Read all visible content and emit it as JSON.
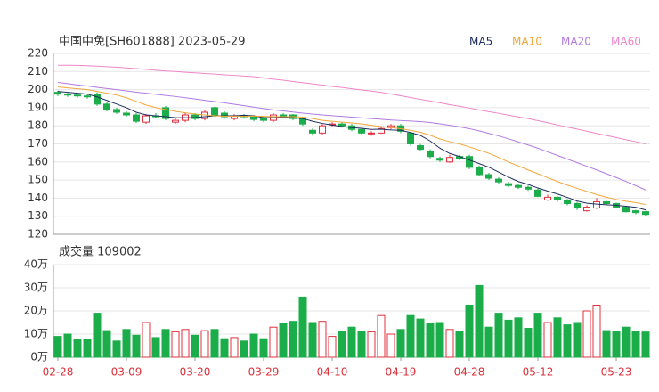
{
  "chart_data": [
    {
      "type": "candlestick",
      "title": "中国中免[SH601888] 2023-05-29",
      "categories": [
        "02-28",
        null,
        null,
        null,
        null,
        null,
        null,
        "03-09",
        null,
        null,
        null,
        null,
        null,
        null,
        "03-20",
        null,
        null,
        null,
        null,
        null,
        null,
        "03-29",
        null,
        null,
        null,
        null,
        null,
        null,
        "04-10",
        null,
        null,
        null,
        null,
        null,
        null,
        "04-19",
        null,
        null,
        null,
        null,
        null,
        null,
        "04-28",
        null,
        null,
        null,
        null,
        null,
        null,
        "05-12",
        null,
        null,
        null,
        null,
        null,
        null,
        null,
        "05-23",
        null,
        null,
        null
      ],
      "open": [
        198.5,
        197.5,
        197,
        196.5,
        197.5,
        192,
        189,
        187,
        186,
        182,
        185.5,
        190,
        182,
        183,
        186,
        184,
        190,
        187,
        184,
        185.5,
        185,
        184.5,
        183,
        186,
        186,
        184,
        177.5,
        176,
        180.5,
        181,
        180,
        178,
        176,
        176,
        179,
        180,
        176,
        169,
        166,
        162,
        160,
        163,
        163,
        157,
        153,
        150.5,
        148,
        147,
        146,
        144.5,
        139,
        140.5,
        139,
        137,
        133,
        134.5,
        138,
        137,
        135,
        133,
        132.5
      ],
      "high": [
        199.5,
        198.5,
        198,
        197.5,
        198.5,
        193,
        190,
        188,
        187,
        186.5,
        187,
        191,
        184.5,
        187.5,
        187,
        188.5,
        190.5,
        188,
        186.5,
        186.5,
        186,
        185.5,
        187,
        187,
        186.5,
        185,
        178.5,
        181,
        182,
        182,
        181,
        178.5,
        177,
        179.5,
        181,
        181,
        176.5,
        170,
        167,
        163,
        164,
        164,
        164,
        158,
        154,
        151.5,
        149,
        148,
        147,
        145.5,
        142,
        141,
        139.5,
        138,
        136,
        140,
        138.5,
        137.5,
        135.5,
        133.5,
        133
      ],
      "low": [
        196.5,
        196,
        195.5,
        195,
        191,
        188,
        186.5,
        185,
        181.5,
        181,
        184,
        183,
        181,
        182,
        183,
        183,
        185,
        184,
        183,
        184,
        182.5,
        182,
        182,
        184.5,
        183,
        180,
        174.5,
        175,
        179.5,
        179,
        177,
        175,
        174.5,
        175.5,
        178,
        176,
        169,
        166,
        162,
        160,
        159.5,
        161,
        156,
        152,
        150,
        148,
        146,
        145,
        144,
        140.5,
        138.5,
        138,
        136,
        133.5,
        132.5,
        134,
        136,
        134.5,
        132,
        131,
        130
      ],
      "close": [
        197.5,
        197,
        196.5,
        196,
        192,
        189,
        187.5,
        186,
        182.5,
        185.5,
        185,
        184,
        183,
        186,
        184,
        187.5,
        186,
        185,
        185.5,
        185,
        183.5,
        183,
        186,
        185.5,
        184,
        181,
        176,
        180,
        181,
        180,
        178,
        176,
        176,
        178.5,
        180,
        177,
        170,
        167,
        163,
        161,
        162.5,
        162,
        157,
        153,
        151,
        149,
        147,
        146,
        145,
        141,
        140.5,
        139,
        137,
        134.5,
        135,
        138,
        137,
        135,
        132.5,
        132,
        131
      ],
      "up_color": "#e0313d",
      "down_color": "#1aad4a",
      "series": [
        {
          "name": "MA5",
          "color": "#1f2c5c",
          "values": [
            199,
            198.5,
            198,
            197.5,
            196,
            194,
            192,
            190,
            187.5,
            186,
            185.5,
            185,
            184.5,
            184.5,
            184.5,
            185,
            185.5,
            185.5,
            185.5,
            185.8,
            185.5,
            184.5,
            184.5,
            184.6,
            184.4,
            184,
            182.5,
            181.3,
            180.4,
            179.6,
            179,
            178.6,
            178,
            178.1,
            177.7,
            177.5,
            176.3,
            174.7,
            171.6,
            167.6,
            164.7,
            163,
            161.1,
            159.1,
            157.1,
            154.4,
            151.6,
            149.2,
            147.6,
            145.6,
            143.9,
            142.3,
            140.4,
            138.4,
            137.2,
            136.7,
            136.3,
            136,
            135.5,
            134.9,
            133.5
          ]
        },
        {
          "name": "MA10",
          "color": "#f3a73b",
          "values": [
            201.5,
            201,
            200.5,
            200,
            199,
            198,
            197,
            195.5,
            193.5,
            191.5,
            190,
            189,
            188,
            187.2,
            186.5,
            186,
            185.5,
            185.3,
            185.2,
            185.2,
            185.4,
            185.2,
            185,
            185,
            185,
            184.8,
            184,
            183,
            182.5,
            182,
            181.6,
            181,
            180.3,
            179.6,
            179,
            178.4,
            177.5,
            176.4,
            174.8,
            172.7,
            171.2,
            170,
            168.3,
            166.6,
            164.8,
            162.5,
            160,
            157.8,
            155.6,
            153.5,
            151.3,
            149.2,
            147.2,
            145.4,
            143.7,
            142,
            140.5,
            139.3,
            138.3,
            137.5,
            136.5
          ]
        },
        {
          "name": "MA20",
          "color": "#b07be0",
          "values": [
            204,
            203.3,
            202.6,
            202,
            201.3,
            200.6,
            200,
            199.3,
            198.6,
            198,
            197.4,
            196.8,
            196.2,
            195.5,
            194.8,
            194.1,
            193.4,
            192.7,
            191.9,
            191.1,
            190.3,
            189.5,
            188.8,
            188.2,
            187.6,
            187,
            186.5,
            186,
            185.6,
            185.2,
            184.8,
            184.4,
            184,
            183.6,
            183.2,
            182.9,
            182.6,
            182.3,
            181.8,
            181.1,
            180.3,
            179.4,
            178.4,
            177.2,
            175.8,
            174.4,
            172.8,
            171.1,
            169.4,
            167.6,
            165.6,
            163.6,
            161.6,
            159.6,
            157.6,
            155.6,
            153.5,
            151.4,
            149.2,
            146.9,
            144.5
          ]
        },
        {
          "name": "MA60",
          "color": "#ee86c9",
          "values": [
            213.5,
            213.5,
            213.4,
            213.2,
            213,
            212.7,
            212.4,
            212,
            211.6,
            211.2,
            210.7,
            210.3,
            210,
            209.6,
            209.3,
            208.9,
            208.6,
            208.2,
            207.9,
            207.5,
            207.2,
            206.5,
            205.8,
            205.2,
            204.5,
            203.8,
            203.2,
            202.5,
            201.8,
            201.2,
            200.5,
            199.8,
            199.2,
            198.5,
            197.5,
            196.6,
            195.6,
            194.6,
            193.7,
            192.7,
            191.7,
            190.8,
            189.8,
            188.8,
            187.8,
            186.9,
            185.9,
            184.9,
            184,
            182.8,
            181.7,
            180.5,
            179.3,
            178.2,
            177,
            175.8,
            174.6,
            173.5,
            172.3,
            171.2,
            170
          ]
        }
      ],
      "ylim": [
        120,
        220
      ],
      "yticks": [
        120,
        130,
        140,
        150,
        160,
        170,
        180,
        190,
        200,
        210,
        220
      ],
      "grid": true
    },
    {
      "type": "bar",
      "title": "成交量 109002",
      "values": [
        9,
        10,
        7.5,
        7.5,
        19,
        11.5,
        7,
        12,
        9.5,
        15,
        8.5,
        12,
        11,
        12,
        9.5,
        11.5,
        12,
        8,
        8.5,
        7,
        10,
        8,
        13,
        14.5,
        15.5,
        26,
        15,
        15.5,
        9,
        11,
        13,
        11,
        11,
        18,
        10,
        12,
        18,
        16.5,
        14.5,
        15,
        12,
        11,
        22.5,
        31,
        13,
        19,
        16,
        17,
        12.5,
        19,
        15,
        17,
        14,
        15,
        20,
        22.5,
        11.5,
        11,
        13,
        11,
        10.9
      ],
      "ylim": [
        0,
        40
      ],
      "yticks": [
        {
          "value": 0,
          "label": "0万"
        },
        {
          "value": 10,
          "label": "10万"
        },
        {
          "value": 20,
          "label": "20万"
        },
        {
          "value": 30,
          "label": "30万"
        },
        {
          "value": 40,
          "label": "40万"
        }
      ],
      "grid": true
    }
  ]
}
